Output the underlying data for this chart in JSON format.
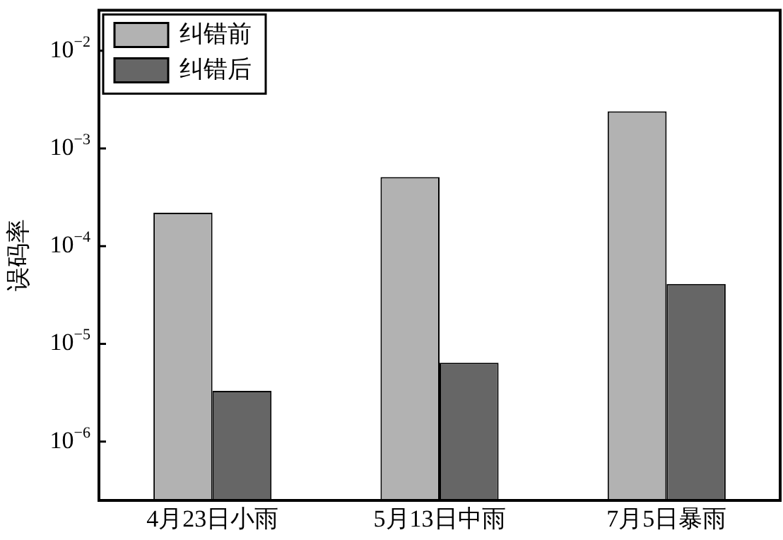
{
  "chart_data": {
    "type": "bar",
    "ylabel": "误码率",
    "categories": [
      "4月23日小雨",
      "5月13日中雨",
      "7月5日暴雨"
    ],
    "series": [
      {
        "name": "纠错前",
        "color": "#b2b2b2",
        "values": [
          0.00022,
          0.00051,
          0.0024
        ]
      },
      {
        "name": "纠错后",
        "color": "#666666",
        "values": [
          3.3e-06,
          6.4e-06,
          4.1e-05
        ]
      }
    ],
    "log": true,
    "ylim": [
      2.5e-07,
      0.026
    ],
    "yticks": [
      {
        "value": 1e-06,
        "label": "10$^{−6}$"
      },
      {
        "value": 1e-05,
        "label": "10$^{−5}$"
      },
      {
        "value": 0.0001,
        "label": "10$^{−4}$"
      },
      {
        "value": 0.001,
        "label": "10$^{−3}$"
      },
      {
        "value": 0.01,
        "label": "10$^{−2}$"
      }
    ],
    "grid": false,
    "legend": "top left"
  }
}
